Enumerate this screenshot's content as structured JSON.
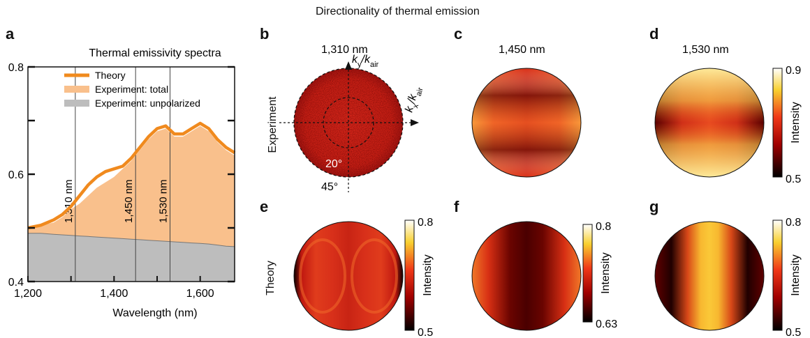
{
  "figure_title": "Directionality of thermal emission",
  "panel_labels": [
    "a",
    "b",
    "c",
    "d",
    "e",
    "f",
    "g"
  ],
  "row_labels": {
    "experiment": "Experiment",
    "theory": "Theory"
  },
  "panel_b": {
    "wavelength": "1,310 nm",
    "ky_axis": "k_y/k_air",
    "kx_axis": "k_x/k_air",
    "inner_angle": "20°",
    "outer_angle": "45°"
  },
  "panel_c": {
    "wavelength": "1,450 nm"
  },
  "panel_d": {
    "wavelength": "1,530 nm"
  },
  "colorbars": [
    {
      "panel": "d",
      "label": "Intensity",
      "max": "0.9",
      "min": "0.5"
    },
    {
      "panel": "e",
      "label": "Intensity",
      "max": "0.8",
      "min": "0.5"
    },
    {
      "panel": "f",
      "label": "Intensity",
      "max": "0.8",
      "min": "0.63"
    },
    {
      "panel": "g",
      "label": "Intensity",
      "max": "0.8",
      "min": "0.5"
    }
  ],
  "colors": {
    "theory": "#f08a1e",
    "experiment_total": "#f9c08c",
    "experiment_unpolarized": "#bdbdbd",
    "heat_dark": "#1a0000",
    "heat_mid": "#e8301a",
    "heat_bright": "#fff6b0"
  },
  "chart_data": {
    "type": "area",
    "title": "Thermal emissivity spectra",
    "xlabel": "Wavelength (nm)",
    "ylabel": "",
    "xlim": [
      1200,
      1680
    ],
    "ylim": [
      0.4,
      0.8
    ],
    "x_ticks": [
      "1,200",
      "1,400",
      "1,600"
    ],
    "y_ticks": [
      "0.4",
      "0.6",
      "0.8"
    ],
    "vertical_lines": [
      {
        "x": 1310,
        "label": "1,310 nm"
      },
      {
        "x": 1450,
        "label": "1,450 nm"
      },
      {
        "x": 1530,
        "label": "1,530 nm"
      }
    ],
    "legend_position": "top-right",
    "x": [
      1200,
      1230,
      1260,
      1280,
      1300,
      1320,
      1340,
      1360,
      1380,
      1400,
      1420,
      1440,
      1460,
      1480,
      1500,
      1520,
      1540,
      1560,
      1580,
      1600,
      1620,
      1640,
      1660,
      1680
    ],
    "series": [
      {
        "name": "Theory",
        "style": "line",
        "values": [
          0.5,
          0.505,
          0.515,
          0.525,
          0.54,
          0.56,
          0.58,
          0.595,
          0.605,
          0.61,
          0.615,
          0.63,
          0.65,
          0.67,
          0.685,
          0.69,
          0.675,
          0.675,
          0.685,
          0.695,
          0.685,
          0.665,
          0.65,
          0.64
        ]
      },
      {
        "name": "Experiment: total",
        "style": "area",
        "values": [
          0.5,
          0.505,
          0.51,
          0.52,
          0.535,
          0.545,
          0.56,
          0.575,
          0.585,
          0.595,
          0.61,
          0.625,
          0.645,
          0.665,
          0.68,
          0.685,
          0.67,
          0.67,
          0.68,
          0.69,
          0.68,
          0.66,
          0.645,
          0.635
        ]
      },
      {
        "name": "Experiment: unpolarized",
        "style": "area",
        "values": [
          0.49,
          0.49,
          0.488,
          0.487,
          0.486,
          0.485,
          0.484,
          0.483,
          0.482,
          0.481,
          0.48,
          0.479,
          0.478,
          0.477,
          0.476,
          0.475,
          0.474,
          0.473,
          0.472,
          0.471,
          0.47,
          0.468,
          0.466,
          0.465
        ]
      }
    ]
  }
}
